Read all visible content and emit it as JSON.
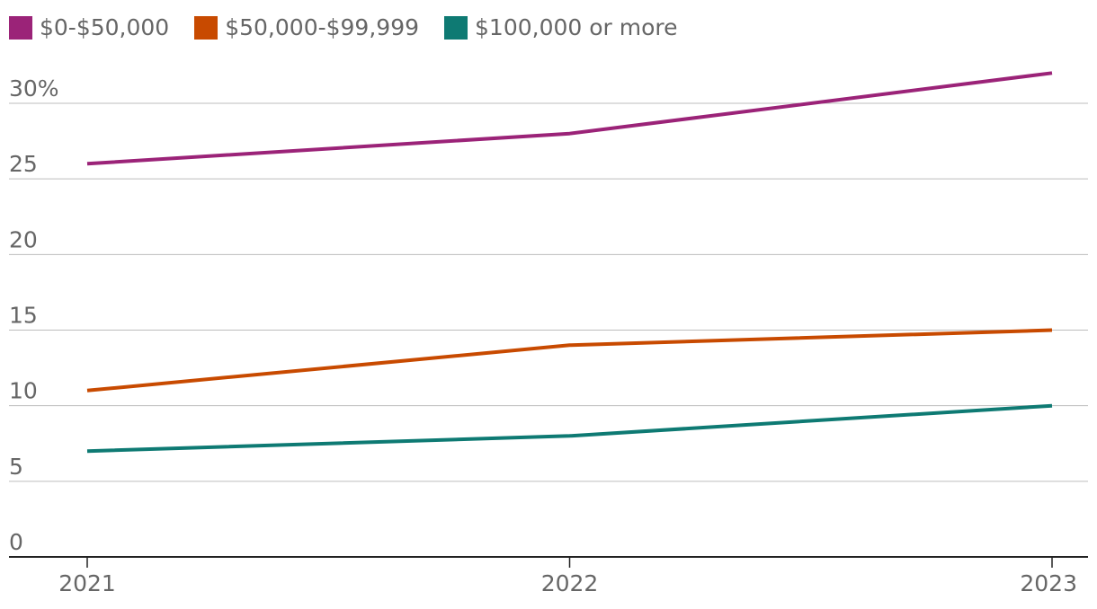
{
  "chart_data": {
    "type": "line",
    "title": "",
    "xlabel": "",
    "ylabel": "",
    "x": [
      "2021",
      "2022",
      "2023"
    ],
    "ylim": [
      0,
      30
    ],
    "y_ticks": [
      0,
      5,
      10,
      15,
      20,
      25,
      30
    ],
    "y_tick_labels": [
      "0",
      "5",
      "10",
      "15",
      "20",
      "25",
      "30%"
    ],
    "grid": true,
    "legend_position": "top-left",
    "series": [
      {
        "name": "$0-$50,000",
        "color": "#9b2378",
        "values": [
          26,
          28,
          32
        ]
      },
      {
        "name": "$50,000-$99,999",
        "color": "#c84a00",
        "values": [
          11,
          14,
          15
        ]
      },
      {
        "name": "$100,000 or more",
        "color": "#0e7a73",
        "values": [
          7,
          8,
          10
        ]
      }
    ]
  }
}
